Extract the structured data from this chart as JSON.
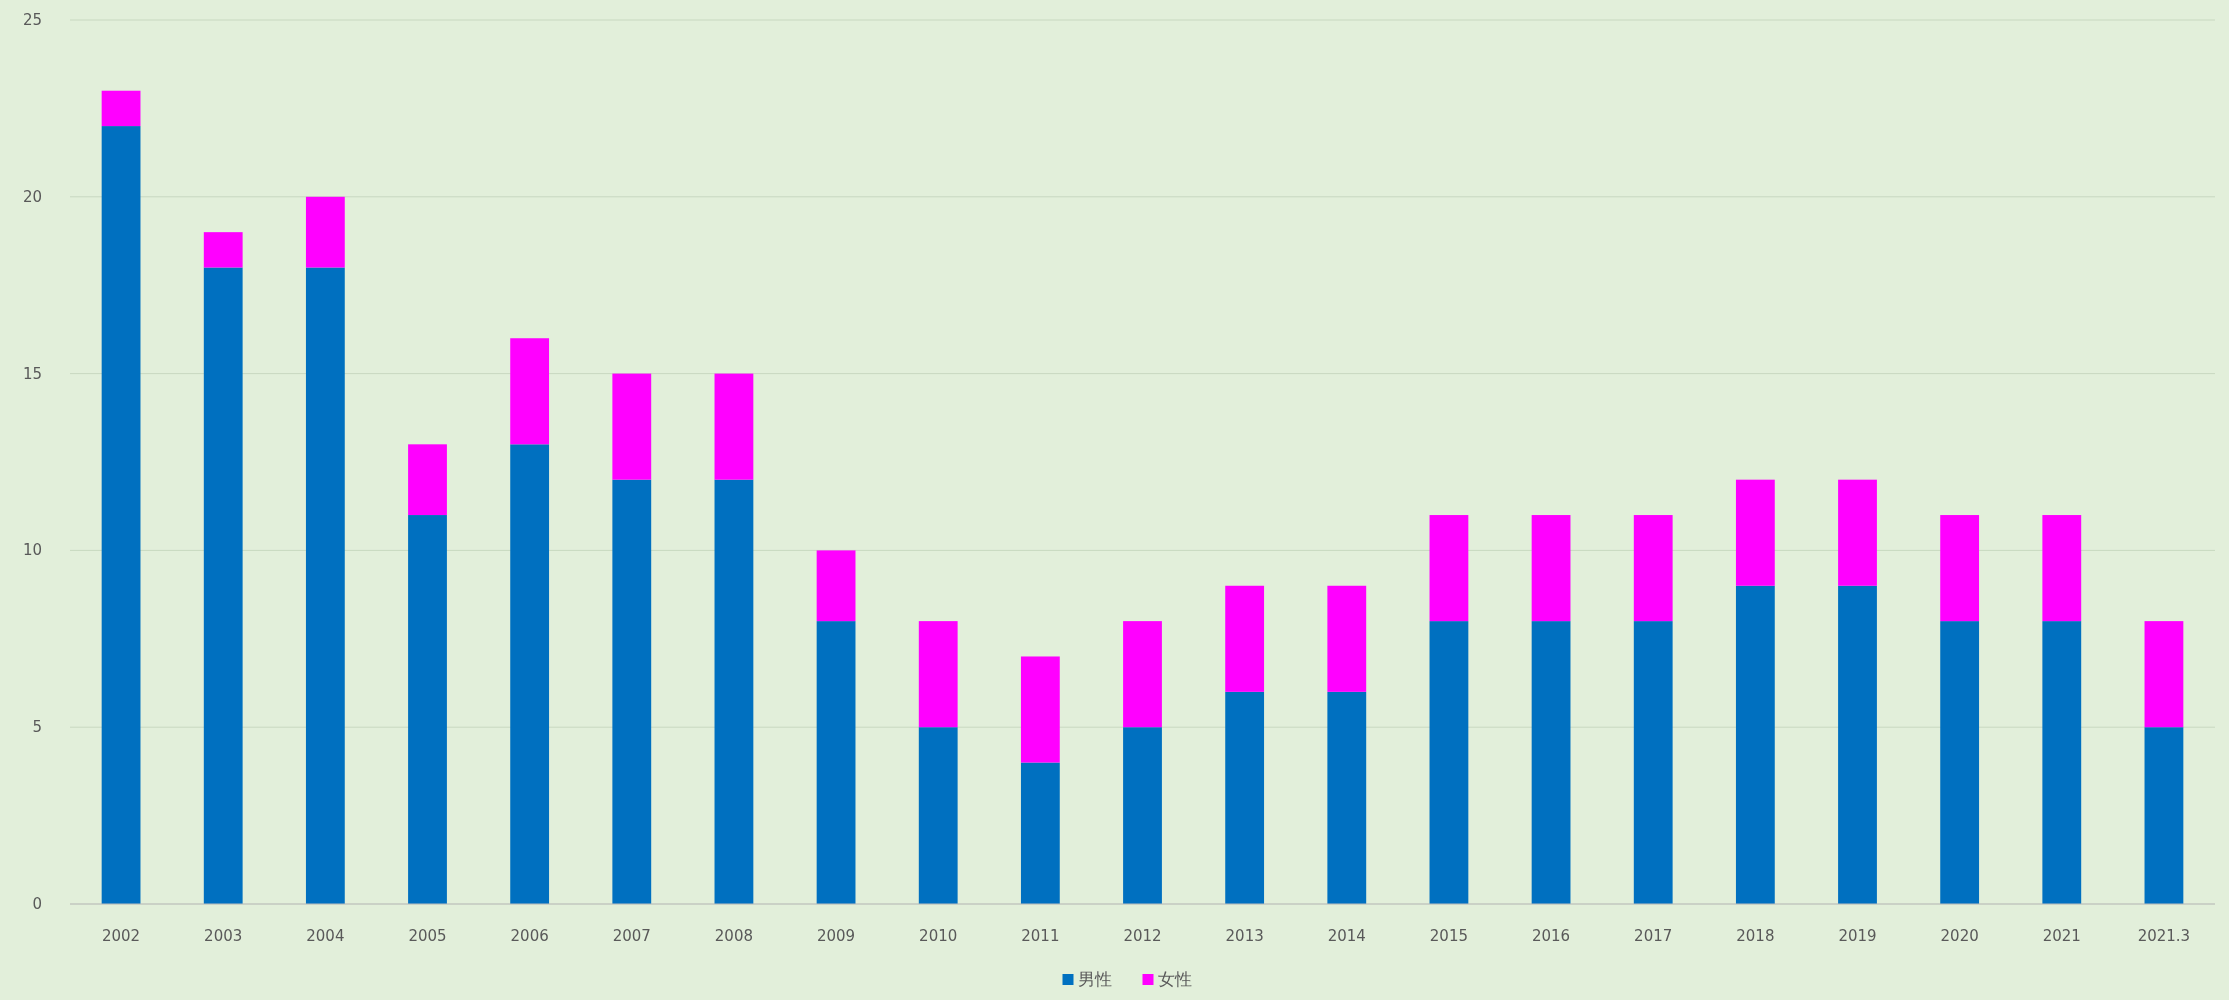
{
  "chart_data": {
    "type": "bar",
    "stacked": true,
    "categories": [
      "2002",
      "2003",
      "2004",
      "2005",
      "2006",
      "2007",
      "2008",
      "2009",
      "2010",
      "2011",
      "2012",
      "2013",
      "2014",
      "2015",
      "2016",
      "2017",
      "2018",
      "2019",
      "2020",
      "2021",
      "2021.3"
    ],
    "series": [
      {
        "name": "男性",
        "color": "#0070c0",
        "values": [
          22,
          18,
          18,
          11,
          13,
          12,
          12,
          8,
          5,
          4,
          5,
          6,
          6,
          8,
          8,
          8,
          9,
          9,
          8,
          8,
          5
        ]
      },
      {
        "name": "女性",
        "color": "#ff00ff",
        "values": [
          1,
          1,
          2,
          2,
          3,
          3,
          3,
          2,
          3,
          3,
          3,
          3,
          3,
          3,
          3,
          3,
          3,
          3,
          3,
          3,
          3
        ]
      }
    ],
    "ylim": [
      0,
      25
    ],
    "yticks": [
      0,
      5,
      10,
      15,
      20,
      25
    ],
    "grid": "y",
    "legend": "bottom"
  }
}
